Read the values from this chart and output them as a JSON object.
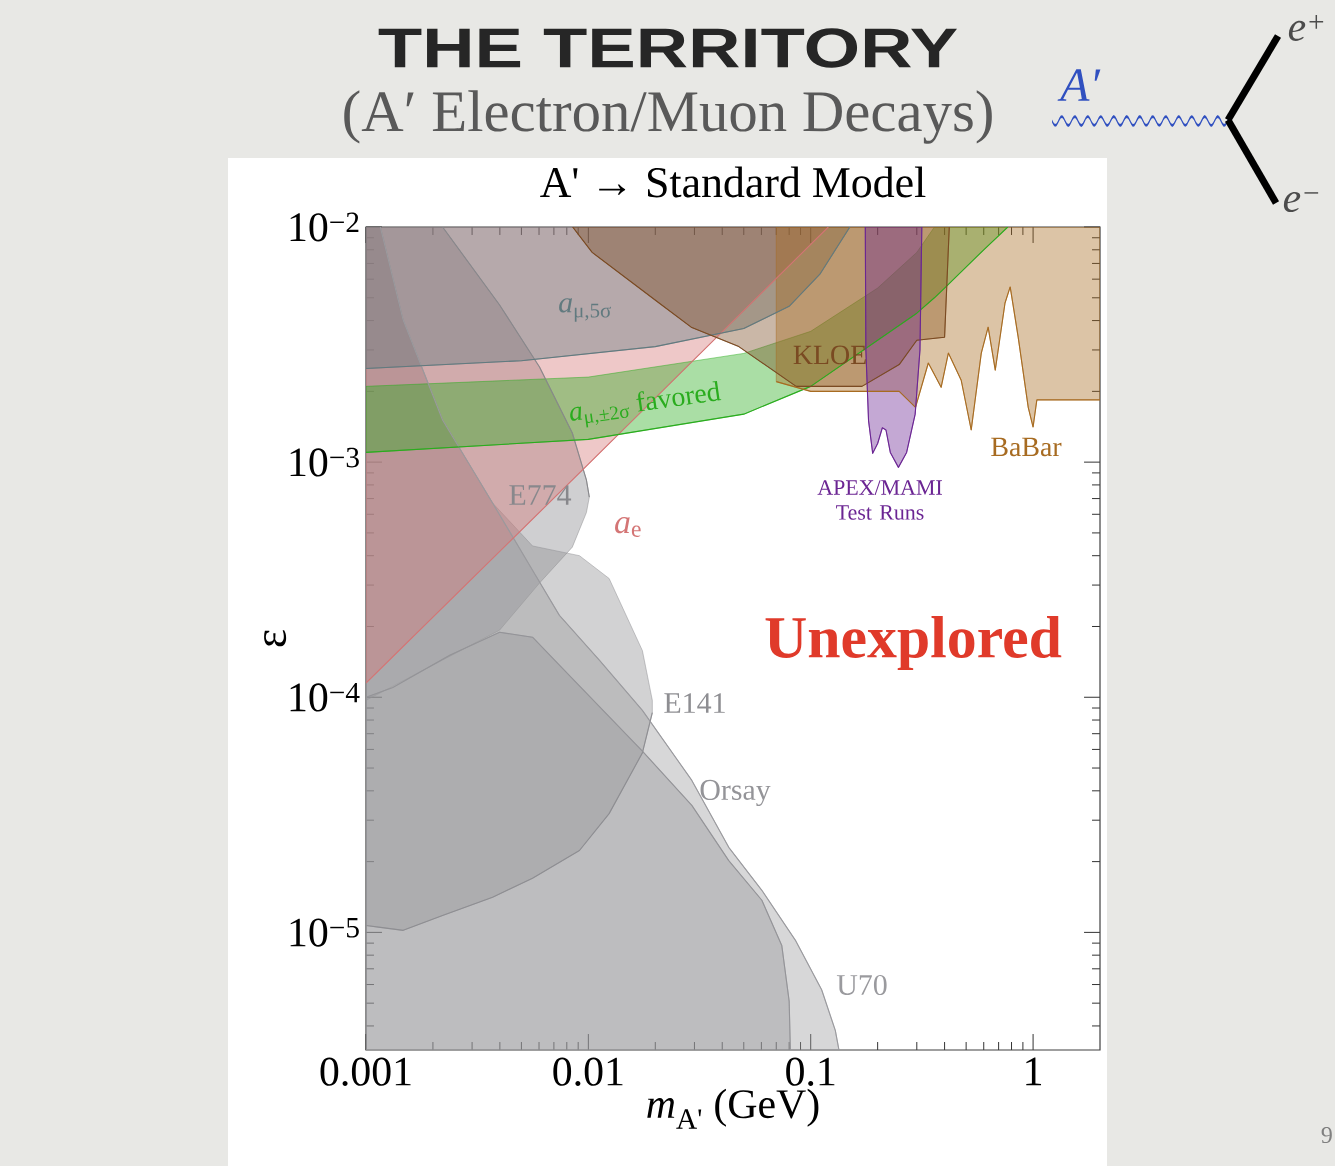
{
  "chart_data": {
    "type": "line",
    "title": "THE TERRITORY",
    "subtitle": "(A′ Electron/Muon Decays)",
    "xlabel": "*m*$_{A'}$ (GeV)",
    "ylabel": "ε",
    "log": "xy",
    "xlim": [
      0.001,
      2
    ],
    "ylim": [
      3.16e-06,
      0.01
    ],
    "xticks": [
      0.001,
      0.01,
      0.1,
      1
    ],
    "yticks": [
      {
        "value": 0.01,
        "label": "10$^{−2}$"
      },
      {
        "value": 0.001,
        "label": "10$^{−3}$"
      },
      {
        "value": 0.0001,
        "label": "10$^{−4}$"
      },
      {
        "value": 1e-05,
        "label": "10$^{−5}$"
      }
    ],
    "series": [
      {
        "name": "E774",
        "color": "#88888c",
        "x": [
          0.001,
          0.00221,
          0.00399,
          0.00603,
          0.00847,
          0.0098,
          0.0101
        ],
        "values": [
          null,
          0.01,
          0.00466,
          0.00254,
          0.00133,
          0.00084,
          0.00071
        ],
        "upper": [
          0.01,
          0.01,
          0.00466,
          0.00254,
          0.00133,
          0.00084,
          0.00071
        ],
        "lower": [
          9.7e-05,
          0.000144,
          0.000193,
          0.000306,
          0.000435,
          0.00061,
          0.00071
        ]
      },
      {
        "name": "E141",
        "color": "#8e8e92",
        "x": [
          0.001,
          0.00116,
          0.00147,
          0.00221,
          0.00371,
          0.00561,
          0.00912,
          0.0124,
          0.0175,
          0.0194
        ],
        "values": [
          1.07e-05,
          1.05e-05,
          1.02e-05,
          1.18e-05,
          1.41e-05,
          1.7e-05,
          2.23e-05,
          3.2e-05,
          5.8e-05,
          8.6e-05
        ],
        "upper": [
          0.01,
          0.01,
          0.004,
          0.00151,
          0.00067,
          0.00044,
          0.0004,
          0.00032,
          0.000158,
          9.7e-05
        ],
        "lower": [
          1.07e-05,
          1.05e-05,
          1.02e-05,
          1.18e-05,
          1.41e-05,
          1.7e-05,
          2.23e-05,
          3.2e-05,
          5.8e-05,
          8.6e-05
        ]
      },
      {
        "name": "Orsay",
        "color": "#949498",
        "x": [
          0.001,
          0.00132,
          0.00238,
          0.00399,
          0.00561,
          0.00741,
          0.0175,
          0.0292,
          0.0428,
          0.0603,
          0.0741,
          0.08,
          0.081
        ],
        "values": [
          0.0001,
          0.00011,
          0.000151,
          0.000189,
          0.00018,
          0.000137,
          5.9e-05,
          3.47e-05,
          2.02e-05,
          1.37e-05,
          8.8e-06,
          5.1e-06,
          3.16e-06
        ],
        "upper": [
          0.0001,
          0.00011,
          0.000151,
          0.000189,
          0.00018,
          0.000137,
          5.9e-05,
          3.47e-05,
          2.02e-05,
          1.37e-05,
          8.8e-06,
          5.1e-06,
          3.16e-06
        ],
        "lower": [
          3.16e-06,
          3.16e-06,
          3.16e-06,
          3.16e-06,
          3.16e-06,
          3.16e-06,
          3.16e-06,
          3.16e-06,
          3.16e-06,
          3.16e-06,
          3.16e-06,
          3.16e-06,
          3.16e-06
        ]
      },
      {
        "name": "U70",
        "color": "#9a9a9e",
        "x": [
          0.001,
          0.00116,
          0.00147,
          0.00221,
          0.00371,
          0.00561,
          0.00741,
          0.0112,
          0.0175,
          0.0292,
          0.0428,
          0.0603,
          0.0857,
          0.112,
          0.129,
          0.134
        ],
        "values": [
          null,
          0.01,
          0.00402,
          0.00151,
          0.00067,
          0.000347,
          0.000223,
          0.000144,
          8.8e-05,
          4.43e-05,
          2.3e-05,
          1.51e-05,
          9.2e-06,
          5.7e-06,
          3.83e-06,
          3.16e-06
        ],
        "upper": [
          0.01,
          0.01,
          0.00402,
          0.00151,
          0.00067,
          0.000347,
          0.000223,
          0.000144,
          8.8e-05,
          4.43e-05,
          2.3e-05,
          1.51e-05,
          9.2e-06,
          5.7e-06,
          3.83e-06,
          3.16e-06
        ],
        "lower": [
          3.16e-06,
          3.16e-06,
          3.16e-06,
          3.16e-06,
          3.16e-06,
          3.16e-06,
          3.16e-06,
          3.16e-06,
          3.16e-06,
          3.16e-06,
          3.16e-06,
          3.16e-06,
          3.16e-06,
          3.16e-06,
          3.16e-06,
          3.16e-06
        ]
      },
      {
        "name": "*a*$_{e}$",
        "color": "#d47575",
        "x": [
          0.001,
          0.01,
          0.12
        ],
        "values": [
          0.000115,
          0.00098,
          0.01
        ],
        "upper": [
          0.01,
          0.01,
          0.01
        ],
        "lower": [
          0.000115,
          0.00098,
          0.01
        ]
      },
      {
        "name": "*a*$_{μ,5σ}$",
        "color": "#617a7f",
        "x": [
          0.001,
          0.005,
          0.02,
          0.05,
          0.08,
          0.11,
          0.15
        ],
        "values": [
          0.0025,
          0.0027,
          0.0031,
          0.0037,
          0.0046,
          0.0063,
          0.01
        ],
        "upper": [
          0.01,
          0.01,
          0.01,
          0.01,
          0.01,
          0.01,
          0.01
        ],
        "lower": [
          0.0025,
          0.0027,
          0.0031,
          0.0037,
          0.0046,
          0.0063,
          0.01
        ]
      },
      {
        "name": "*a*$_{μ,±2σ}$ favored",
        "color": "#2aac1e",
        "x": [
          0.001,
          0.01,
          0.05,
          0.1,
          0.2,
          0.3,
          0.36,
          0.4,
          0.6,
          0.77
        ],
        "values": [
          0.0011,
          0.00125,
          0.0016,
          0.0021,
          0.0033,
          0.0043,
          0.005,
          0.0055,
          0.008,
          0.01
        ],
        "upper": [
          0.0021,
          0.0023,
          0.0029,
          0.0036,
          0.0055,
          0.0078,
          0.01,
          0.01,
          0.01,
          0.01
        ],
        "lower": [
          0.0011,
          0.00125,
          0.0016,
          0.0021,
          0.0033,
          0.0043,
          0.005,
          0.0055,
          0.008,
          0.01
        ]
      },
      {
        "name": "KLOE",
        "color": "#7a4a22",
        "x": [
          0.0085,
          0.0104,
          0.0208,
          0.029,
          0.0475,
          0.086,
          0.17,
          0.25,
          0.3,
          0.4,
          0.42
        ],
        "values": [
          0.01,
          0.0078,
          0.00475,
          0.00375,
          0.0031,
          0.0021,
          0.0021,
          0.0026,
          0.0033,
          0.0034,
          0.01
        ],
        "upper": [
          0.01,
          0.01,
          0.01,
          0.01,
          0.01,
          0.01,
          0.01,
          0.01,
          0.01,
          0.01,
          0.01
        ],
        "lower": [
          0.01,
          0.0078,
          0.00475,
          0.00375,
          0.0031,
          0.0021,
          0.0021,
          0.0026,
          0.0033,
          0.0034,
          0.01
        ]
      },
      {
        "name": "BaBar",
        "color": "#a76b21",
        "x": [
          0.07,
          0.1,
          0.2,
          0.25,
          0.296,
          0.338,
          0.386,
          0.416,
          0.475,
          0.527,
          0.585,
          0.628,
          0.676,
          0.748,
          0.789,
          0.857,
          0.951,
          1.0,
          1.04,
          2.0
        ],
        "values": [
          0.0022,
          0.002,
          0.002,
          0.002,
          0.00171,
          0.00264,
          0.00208,
          0.00291,
          0.00223,
          0.00137,
          0.00291,
          0.00375,
          0.00246,
          0.00475,
          0.00556,
          0.0034,
          0.00171,
          0.00141,
          0.00184,
          0.00184
        ],
        "upper": [
          0.01,
          0.01,
          0.01,
          0.01,
          0.01,
          0.01,
          0.01,
          0.01,
          0.01,
          0.01,
          0.01,
          0.01,
          0.01,
          0.01,
          0.01,
          0.01,
          0.01,
          0.01,
          0.01,
          0.01
        ],
        "lower": [
          0.0022,
          0.002,
          0.002,
          0.002,
          0.00171,
          0.00264,
          0.00208,
          0.00291,
          0.00223,
          0.00137,
          0.00291,
          0.00375,
          0.00246,
          0.00475,
          0.00556,
          0.0034,
          0.00171,
          0.00141,
          0.00184,
          0.00184
        ]
      },
      {
        "name": "APEX/MAMI Test Runs",
        "color": "#6b2593",
        "x": [
          0.176,
          0.177,
          0.182,
          0.19,
          0.2,
          0.21,
          0.218,
          0.228,
          0.248,
          0.27,
          0.295,
          0.31,
          0.316
        ],
        "values": [
          0.01,
          0.003,
          0.0015,
          0.00109,
          0.0012,
          0.0014,
          0.00137,
          0.0011,
          0.00095,
          0.0011,
          0.0016,
          0.003,
          0.01
        ],
        "upper": [
          0.01,
          0.01,
          0.01,
          0.01,
          0.01,
          0.01,
          0.01,
          0.01,
          0.01,
          0.01,
          0.01,
          0.01,
          0.01
        ],
        "lower": [
          0.01,
          0.003,
          0.0015,
          0.00109,
          0.0012,
          0.0014,
          0.00137,
          0.0011,
          0.00095,
          0.0011,
          0.0016,
          0.003,
          0.01
        ]
      }
    ],
    "annotations": [
      "A' → Standard Model",
      "Unexplored",
      "A′",
      "e$^{+}$",
      "e$^{−}$",
      "9"
    ]
  }
}
